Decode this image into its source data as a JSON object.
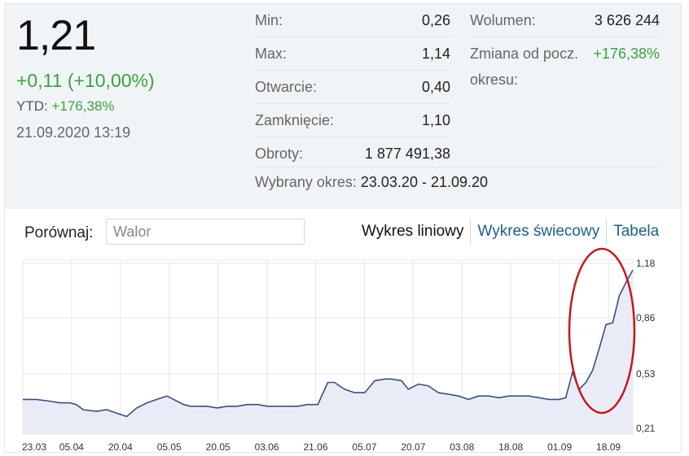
{
  "quote": {
    "price": "1,21",
    "change": "+0,11 (+10,00%)",
    "ytd_label": "YTD:",
    "ytd_value": "+176,38%",
    "datetime": "21.09.2020 13:19"
  },
  "stats": [
    {
      "label": "Min:",
      "value": "0,26"
    },
    {
      "label": "Max:",
      "value": "1,14"
    },
    {
      "label": "Otwarcie:",
      "value": "0,40"
    },
    {
      "label": "Zamknięcie:",
      "value": "1,10"
    },
    {
      "label": "Obroty:",
      "value": "1 877 491,38"
    }
  ],
  "period": {
    "label": "Wybrany okres:",
    "value": "23.03.20 - 21.09.20"
  },
  "volume": {
    "label": "Wolumen:",
    "value": "3 626 244"
  },
  "period_change": {
    "label": "Zmiana od pocz.",
    "value": "+176,38%",
    "label2": "okresu:"
  },
  "compare": {
    "label": "Porównaj:",
    "placeholder": "Walor"
  },
  "tabs": [
    "Wykres liniowy",
    "Wykres świecowy",
    "Tabela"
  ],
  "colors": {
    "line": "#3b4f7a",
    "area": "#e9ecf7",
    "highlight": "#c8161d",
    "positive": "#3aa33e",
    "link": "#1b5f8c"
  },
  "chart_data": {
    "type": "area",
    "x_ticks": [
      "23.03",
      "05.04",
      "20.04",
      "05.05",
      "20.05",
      "03.06",
      "21.06",
      "05.07",
      "20.07",
      "03.08",
      "18.08",
      "01.09",
      "18.09"
    ],
    "y_ticks": [
      "1,18",
      "0,86",
      "0,53",
      "0,21"
    ],
    "y_tick_values": [
      1.18,
      0.86,
      0.53,
      0.21
    ],
    "ylim": [
      0.21,
      1.18
    ],
    "x": [
      "2020-03-23",
      "2020-03-27",
      "2020-03-31",
      "2020-04-03",
      "2020-04-06",
      "2020-04-08",
      "2020-04-10",
      "2020-04-14",
      "2020-04-17",
      "2020-04-20",
      "2020-04-23",
      "2020-04-26",
      "2020-04-29",
      "2020-05-02",
      "2020-05-05",
      "2020-05-07",
      "2020-05-10",
      "2020-05-12",
      "2020-05-14",
      "2020-05-17",
      "2020-05-20",
      "2020-05-23",
      "2020-05-26",
      "2020-05-29",
      "2020-06-01",
      "2020-06-04",
      "2020-06-07",
      "2020-06-10",
      "2020-06-13",
      "2020-06-16",
      "2020-06-19",
      "2020-06-22",
      "2020-06-24",
      "2020-06-27",
      "2020-06-30",
      "2020-07-03",
      "2020-07-06",
      "2020-07-09",
      "2020-07-11",
      "2020-07-14",
      "2020-07-16",
      "2020-07-19",
      "2020-07-22",
      "2020-07-25",
      "2020-07-28",
      "2020-07-31",
      "2020-08-03",
      "2020-08-06",
      "2020-08-09",
      "2020-08-12",
      "2020-08-15",
      "2020-08-18",
      "2020-08-21",
      "2020-08-24",
      "2020-08-27",
      "2020-08-30",
      "2020-09-01",
      "2020-09-03",
      "2020-09-05",
      "2020-09-07",
      "2020-09-09",
      "2020-09-11",
      "2020-09-13",
      "2020-09-15",
      "2020-09-17",
      "2020-09-19",
      "2020-09-21"
    ],
    "values": [
      0.38,
      0.38,
      0.37,
      0.36,
      0.36,
      0.35,
      0.32,
      0.31,
      0.32,
      0.3,
      0.28,
      0.33,
      0.36,
      0.38,
      0.4,
      0.38,
      0.35,
      0.34,
      0.34,
      0.34,
      0.33,
      0.34,
      0.34,
      0.35,
      0.35,
      0.34,
      0.34,
      0.34,
      0.34,
      0.35,
      0.35,
      0.48,
      0.48,
      0.44,
      0.42,
      0.42,
      0.49,
      0.5,
      0.5,
      0.49,
      0.44,
      0.47,
      0.46,
      0.42,
      0.41,
      0.4,
      0.38,
      0.4,
      0.4,
      0.39,
      0.4,
      0.4,
      0.4,
      0.39,
      0.38,
      0.38,
      0.39,
      0.54,
      0.44,
      0.48,
      0.55,
      0.68,
      0.82,
      0.83,
      0.99,
      1.07,
      1.14
    ],
    "xlabel": "",
    "ylabel": "",
    "grid": true,
    "annotation": "red ellipse around the final rally"
  }
}
